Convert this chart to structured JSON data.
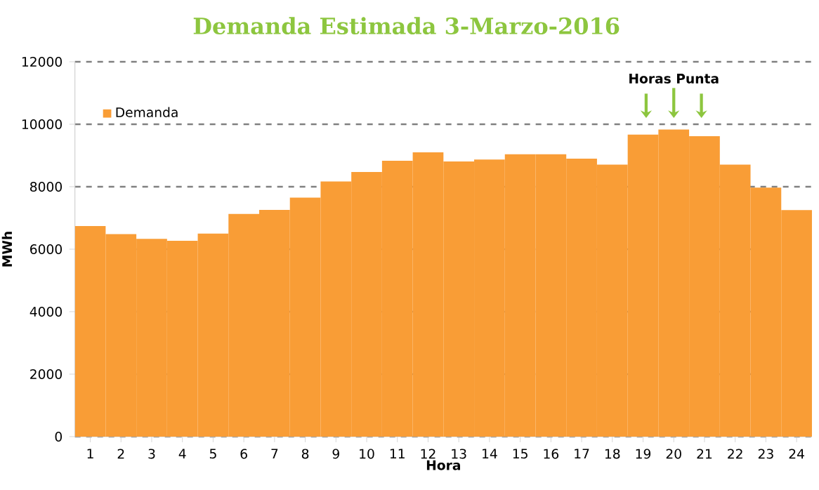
{
  "chart_data": {
    "type": "bar",
    "title": "Demanda Estimada 3-Marzo-2016",
    "xlabel": "Hora",
    "ylabel": "MWh",
    "categories": [
      "1",
      "2",
      "3",
      "4",
      "5",
      "6",
      "7",
      "8",
      "9",
      "10",
      "11",
      "12",
      "13",
      "14",
      "15",
      "16",
      "17",
      "18",
      "19",
      "20",
      "21",
      "22",
      "23",
      "24"
    ],
    "series": [
      {
        "name": "Demanda",
        "color": "#f99d36",
        "values": [
          6740,
          6480,
          6330,
          6270,
          6500,
          7130,
          7260,
          7650,
          8170,
          8470,
          8830,
          9100,
          8810,
          8870,
          9040,
          9040,
          8900,
          8710,
          9670,
          9830,
          9620,
          8710,
          7970,
          7250
        ]
      }
    ],
    "ylim": [
      0,
      12000
    ],
    "yticks": [
      0,
      2000,
      4000,
      6000,
      8000,
      10000,
      12000
    ],
    "grid": "y",
    "legend": "top left",
    "annotations": [
      "Horas Punta"
    ]
  }
}
